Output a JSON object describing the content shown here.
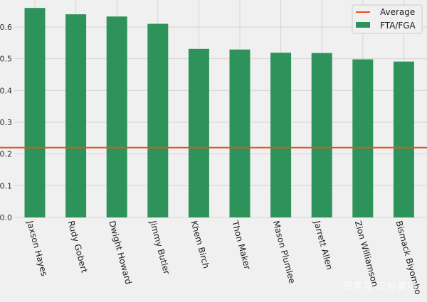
{
  "chart_data": {
    "type": "bar",
    "categories": [
      "Jaxson Hayes",
      "Rudy Gobert",
      "Dwight Howard",
      "Jimmy Butler",
      "Khem Birch",
      "Thon Maker",
      "Mason Plumlee",
      "Jarrett Allen",
      "Zion Williamson",
      "Bismack Biyombo"
    ],
    "series": [
      {
        "name": "FTA/FGA",
        "values": [
          0.66,
          0.64,
          0.633,
          0.61,
          0.531,
          0.529,
          0.519,
          0.518,
          0.498,
          0.491
        ],
        "color": "#2e935a"
      }
    ],
    "average": {
      "name": "Average",
      "value": 0.22,
      "color": "#e8501e"
    },
    "yticks": [
      "0.0",
      "0.1",
      "0.2",
      "0.3",
      "0.4",
      "0.5",
      "0.6"
    ],
    "ylim": [
      0,
      0.685
    ],
    "grid": true,
    "legend_position": "top-right",
    "title": "",
    "xlabel": "",
    "ylabel": ""
  },
  "watermark": "百家号 三秒篮球"
}
